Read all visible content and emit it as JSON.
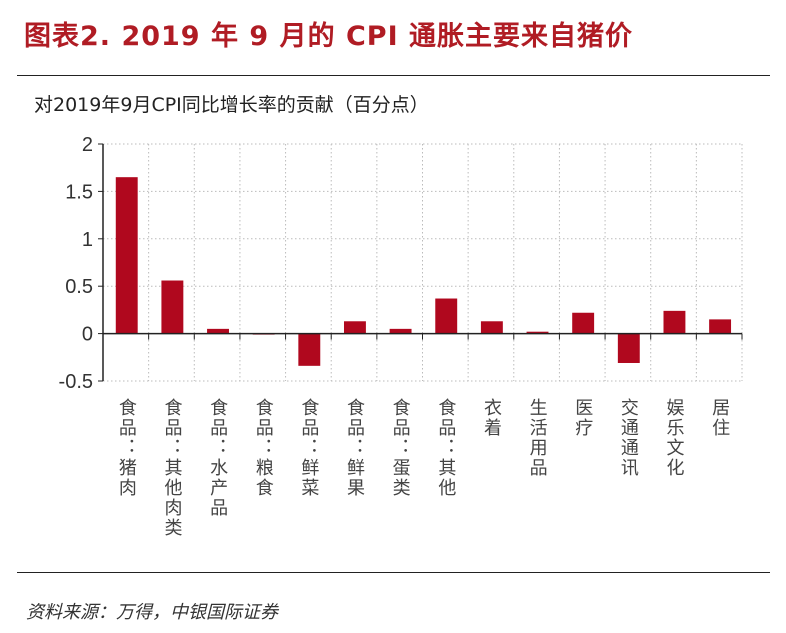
{
  "title": "图表2. 2019 年 9 月的 CPI 通胀主要来自猪价",
  "source": "资料来源：万得，中银国际证券",
  "chart_data": {
    "type": "bar",
    "title": "对2019年9月CPI同比增长率的贡献（百分点）",
    "categories": [
      "食品：猪肉",
      "食品：其他肉类",
      "食品：水产品",
      "食品：粮食",
      "食品：鲜菜",
      "食品：鲜果",
      "食品：蛋类",
      "食品：其他",
      "衣着",
      "生活用品",
      "医疗",
      "交通通讯",
      "娱乐文化",
      "居住"
    ],
    "values": [
      1.65,
      0.56,
      0.05,
      -0.005,
      -0.34,
      0.13,
      0.05,
      0.37,
      0.13,
      0.02,
      0.22,
      -0.31,
      0.24,
      0.15
    ],
    "ylim": [
      -0.5,
      2
    ],
    "yticks": [
      "2",
      "1.5",
      "1",
      "0.5",
      "0",
      "-0.5"
    ],
    "grid": true,
    "bar_color": "#b0081e"
  }
}
